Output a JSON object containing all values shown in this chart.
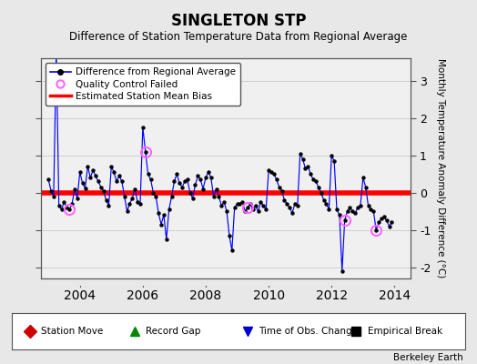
{
  "title": "SINGLETON STP",
  "subtitle": "Difference of Station Temperature Data from Regional Average",
  "ylabel": "Monthly Temperature Anomaly Difference (°C)",
  "xlabel_years": [
    2004,
    2006,
    2008,
    2010,
    2012,
    2014
  ],
  "xlim": [
    2002.75,
    2014.5
  ],
  "ylim": [
    -2.3,
    3.6
  ],
  "yticks": [
    -2,
    -1,
    0,
    1,
    2,
    3
  ],
  "bias_value": -0.02,
  "bias_color": "#ff0000",
  "line_color": "#0000ff",
  "qc_color": "#ff66ff",
  "bg_color": "#e8e8e8",
  "plot_bg": "#f0f0f0",
  "grid_color": "#d0d0d0",
  "watermark": "Berkeley Earth",
  "legend_items": [
    {
      "label": "Difference from Regional Average",
      "color": "#0000ff",
      "marker": "o",
      "markersize": 4,
      "lw": 1.2
    },
    {
      "label": "Quality Control Failed",
      "color": "#ff66ff",
      "marker": "o",
      "markersize": 6,
      "lw": 0
    },
    {
      "label": "Estimated Station Mean Bias",
      "color": "#ff0000",
      "marker": "",
      "lw": 2.5
    }
  ],
  "bottom_legend": [
    {
      "label": "Station Move",
      "color": "#cc0000",
      "marker": "D"
    },
    {
      "label": "Record Gap",
      "color": "#008800",
      "marker": "^"
    },
    {
      "label": "Time of Obs. Change",
      "color": "#0000cc",
      "marker": "v"
    },
    {
      "label": "Empirical Break",
      "color": "#000000",
      "marker": "s"
    }
  ]
}
